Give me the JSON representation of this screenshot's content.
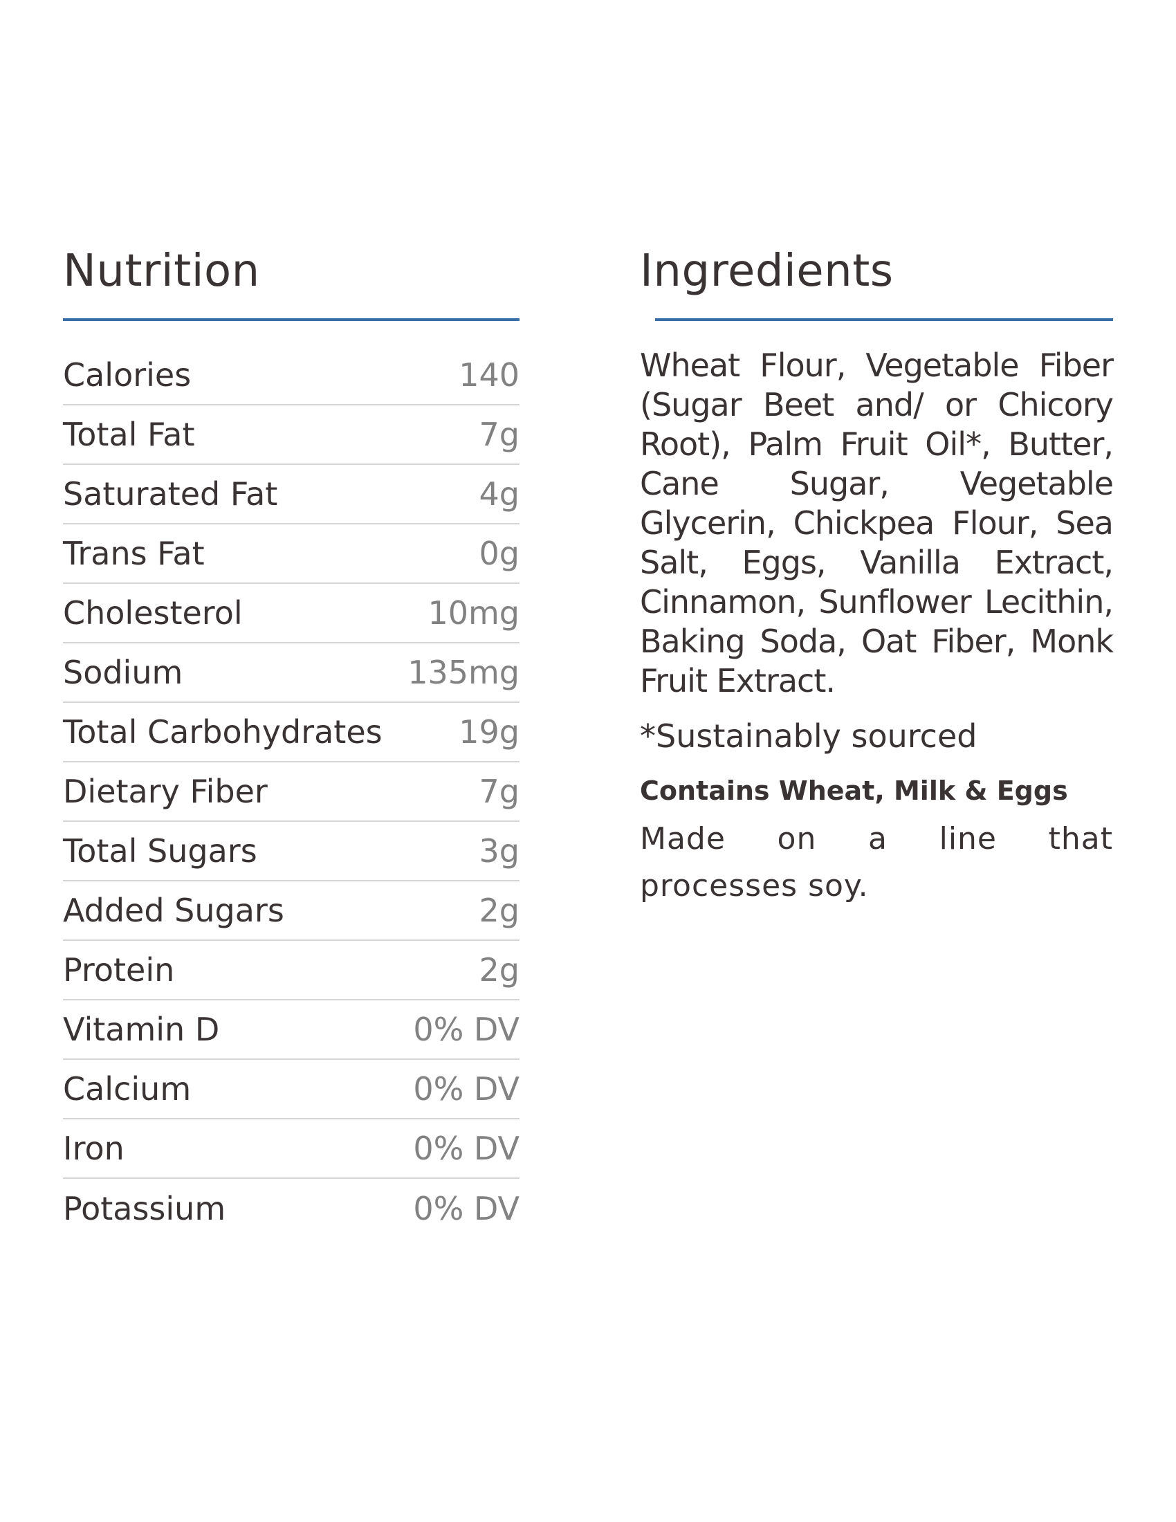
{
  "nutrition": {
    "title": "Nutrition",
    "rows": [
      {
        "label": "Calories",
        "value": "140"
      },
      {
        "label": "Total Fat",
        "value": "7g"
      },
      {
        "label": "Saturated Fat",
        "value": "4g"
      },
      {
        "label": "Trans Fat",
        "value": "0g"
      },
      {
        "label": "Cholesterol",
        "value": "10mg"
      },
      {
        "label": "Sodium",
        "value": "135mg"
      },
      {
        "label": "Total Carbohydrates",
        "value": "19g"
      },
      {
        "label": "Dietary Fiber",
        "value": "7g"
      },
      {
        "label": "Total Sugars",
        "value": "3g"
      },
      {
        "label": "Added Sugars",
        "value": "2g"
      },
      {
        "label": "Protein",
        "value": "2g"
      },
      {
        "label": "Vitamin D",
        "value": "0% DV"
      },
      {
        "label": "Calcium",
        "value": "0% DV"
      },
      {
        "label": "Iron",
        "value": "0% DV"
      },
      {
        "label": "Potassium",
        "value": "0% DV"
      }
    ]
  },
  "ingredients": {
    "title": "Ingredients",
    "text": "Wheat Flour, Vegetable Fiber (Sugar Beet and/ or Chicory Root), Palm Fruit Oil*, Butter, Cane Sugar, Vegetable Glycerin, Chickpea Flour, Sea Salt, Eggs, Vanilla Extract, Cinnamon, Sunflower Lecithin, Baking Soda, Oat Fiber, Monk Fruit Extract.",
    "footnote": "*Sustainably sourced",
    "allergen": "Contains Wheat, Milk & Eggs",
    "processing": "Made on a line that processes soy."
  },
  "colors": {
    "accent_rule": "#3a6ea5",
    "text": "#3a3334",
    "value_text": "#828282",
    "row_divider": "#d4d4d4"
  }
}
